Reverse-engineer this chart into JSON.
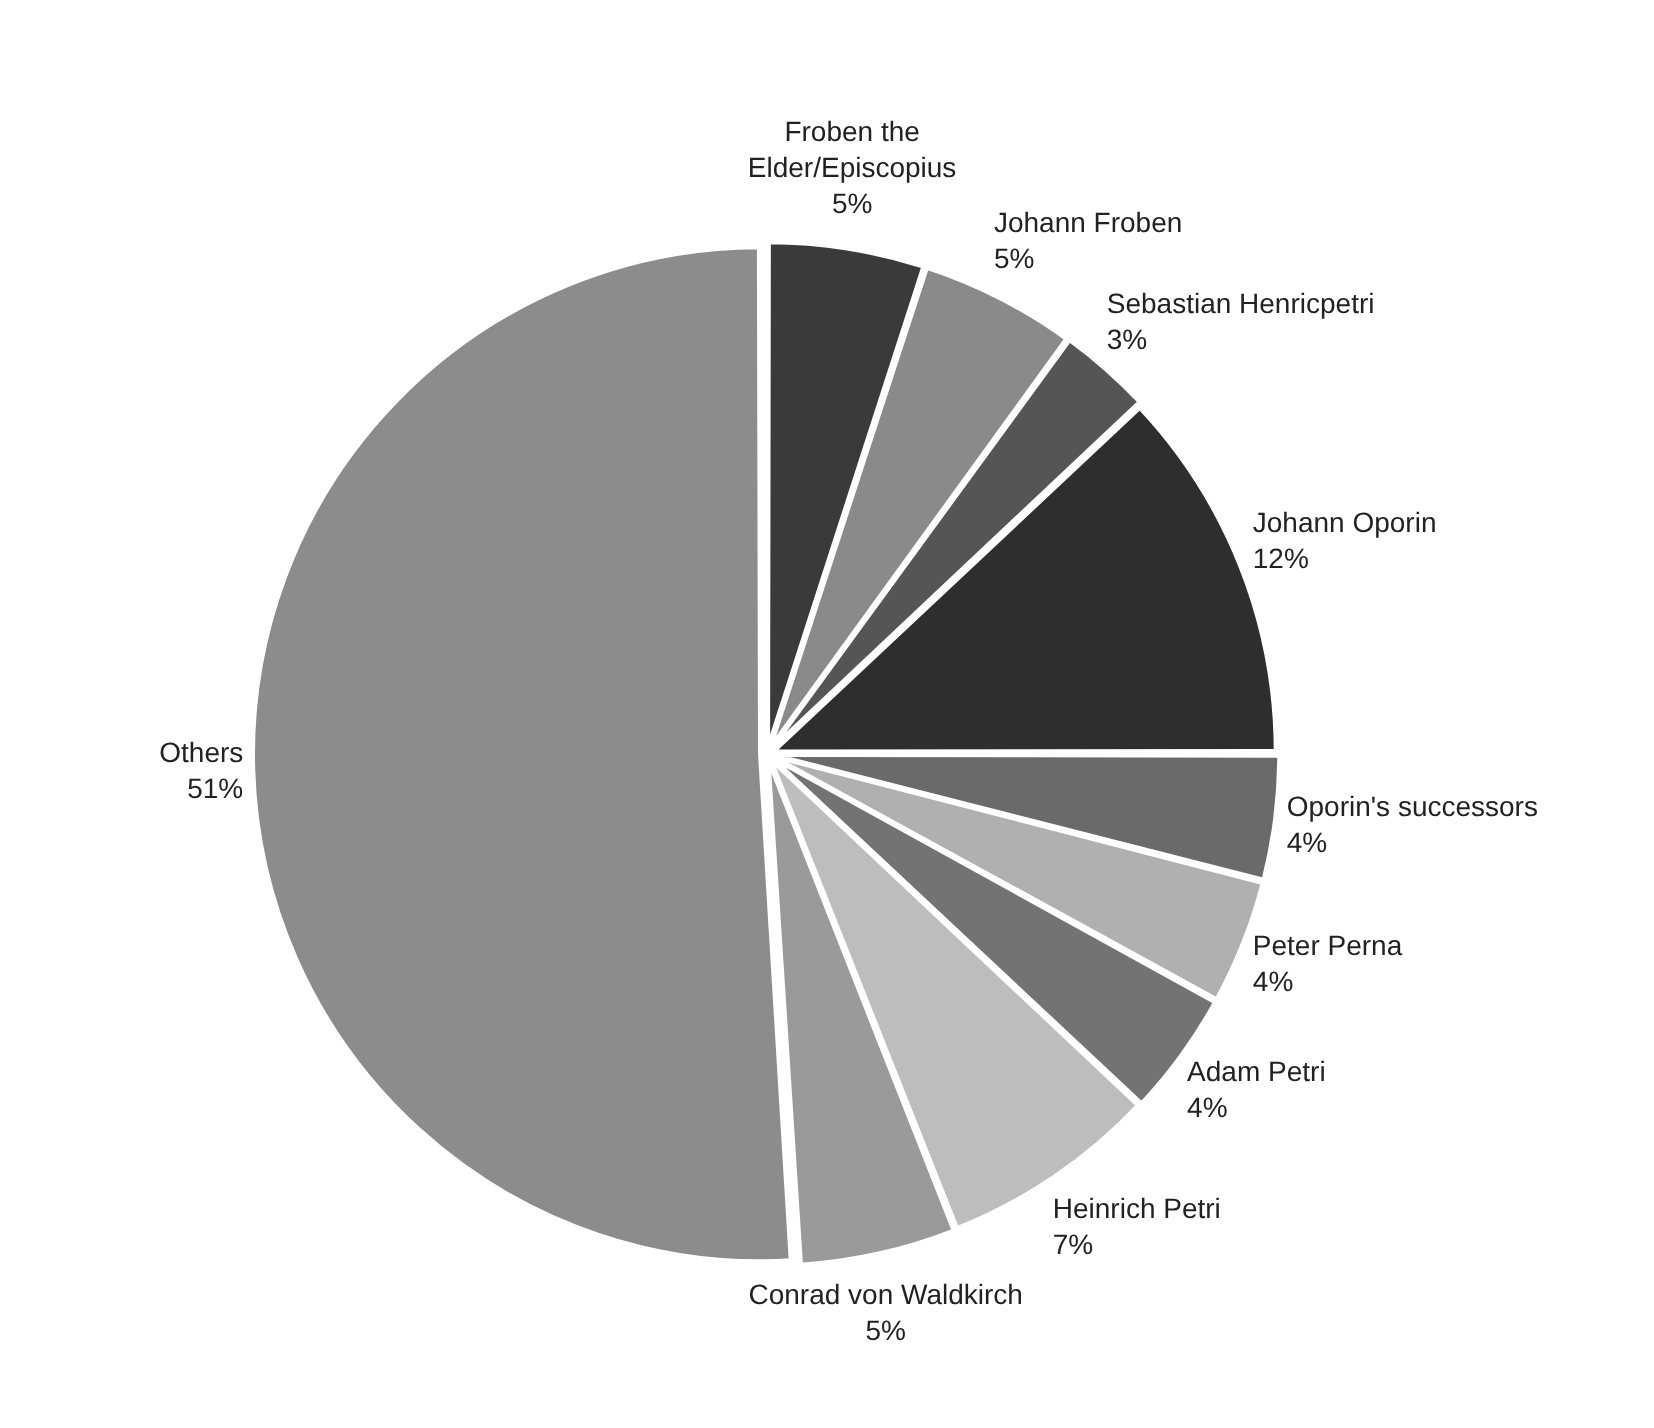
{
  "chart_data": {
    "type": "pie",
    "categories": [
      "Froben the Elder/Episcopius",
      "Johann Froben",
      "Sebastian Henricpetri",
      "Johann Oporin",
      "Oporin's successors",
      "Peter Perna",
      "Adam Petri",
      "Heinrich Petri",
      "Conrad von Waldkirch",
      "Others"
    ],
    "values": [
      5,
      5,
      3,
      12,
      4,
      4,
      4,
      7,
      5,
      51
    ],
    "colors": [
      "#3a3a3a",
      "#8a8a8a",
      "#555555",
      "#2e2e2e",
      "#6a6a6a",
      "#b0b0b0",
      "#737373",
      "#bdbdbd",
      "#9a9a9a",
      "#8c8c8c"
    ],
    "value_labels": [
      "5%",
      "5%",
      "3%",
      "12%",
      "4%",
      "4%",
      "4%",
      "7%",
      "5%",
      "51%"
    ],
    "legend": false
  }
}
